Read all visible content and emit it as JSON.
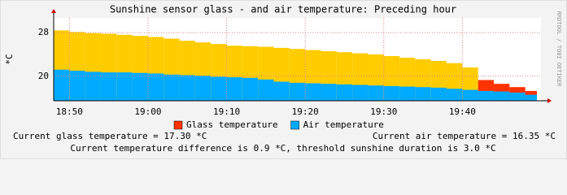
{
  "chart_data": {
    "type": "area",
    "title": "Sunshine sensor glass - and air temperature: Preceding hour",
    "y_label": "*C",
    "side_label": "RRDTOOL / TOBI OETIKER",
    "x": [
      "18:48",
      "18:50",
      "18:52",
      "18:54",
      "18:56",
      "18:58",
      "19:00",
      "19:02",
      "19:04",
      "19:06",
      "19:08",
      "19:10",
      "19:12",
      "19:14",
      "19:16",
      "19:18",
      "19:20",
      "19:22",
      "19:24",
      "19:26",
      "19:28",
      "19:30",
      "19:32",
      "19:34",
      "19:36",
      "19:38",
      "19:40",
      "19:42",
      "19:44",
      "19:46",
      "19:48"
    ],
    "series": [
      {
        "name": "Glass temperature",
        "color": "#ff3300",
        "sunshine_color": "#ffcc00",
        "values": [
          28.4,
          28.1,
          27.9,
          27.8,
          27.6,
          27.4,
          27.2,
          26.9,
          26.5,
          26.2,
          25.9,
          25.6,
          25.5,
          25.4,
          25.2,
          25.0,
          24.8,
          24.6,
          24.4,
          24.2,
          24.0,
          23.7,
          23.4,
          23.1,
          22.8,
          22.4,
          21.6,
          19.3,
          18.6,
          18.0,
          17.3
        ]
      },
      {
        "name": "Air temperature",
        "color": "#00aaff",
        "values": [
          21.2,
          21.0,
          20.8,
          20.7,
          20.7,
          20.6,
          20.5,
          20.3,
          20.2,
          20.1,
          19.9,
          19.8,
          19.7,
          19.4,
          19.0,
          18.8,
          18.7,
          18.6,
          18.5,
          18.4,
          18.3,
          18.2,
          18.1,
          18.0,
          17.9,
          17.7,
          17.5,
          17.3,
          17.2,
          17.0,
          16.6
        ]
      }
    ],
    "threshold": 3,
    "xlim": [
      "18:48",
      "19:50"
    ],
    "xticks": [
      "18:50",
      "19:00",
      "19:10",
      "19:20",
      "19:30",
      "19:40"
    ],
    "ylim": [
      15.5,
      30.7
    ],
    "yticks": [
      20,
      28
    ],
    "grid": true,
    "footer": {
      "glass": "Current glass temperature = 17.30 *C",
      "air": "Current air temperature = 16.35 *C",
      "difference": "Current temperature difference is 0.9 *C, threshold sunshine duration is 3.0 *C"
    }
  }
}
